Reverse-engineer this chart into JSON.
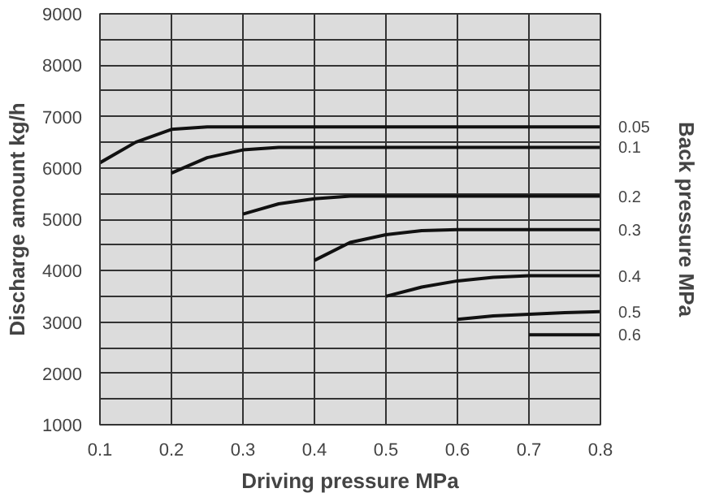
{
  "chart_data": {
    "type": "line",
    "xlabel": "Driving pressure MPa",
    "ylabel": "Discharge amount kg/h",
    "y2label": "Back pressure MPa",
    "xlim": [
      0.1,
      0.8
    ],
    "xticks": [
      0.1,
      0.2,
      0.3,
      0.4,
      0.5,
      0.6,
      0.7,
      0.8
    ],
    "ylim": [
      1000,
      9000
    ],
    "yticks": [
      1000,
      {
        "value": 1500,
        "label": null
      },
      2000,
      {
        "value": 2500,
        "label": null
      },
      3000,
      {
        "value": 3500,
        "label": null
      },
      4000,
      {
        "value": 4500,
        "label": null
      },
      5000,
      {
        "value": 5500,
        "label": null
      },
      6000,
      {
        "value": 6500,
        "label": null
      },
      7000,
      {
        "value": 7500,
        "label": null
      },
      8000,
      {
        "value": 8500,
        "label": null
      },
      9000
    ],
    "grid": true,
    "marker": "none",
    "line_style": "solid",
    "series": [
      {
        "name": "0.05",
        "color": "#111111",
        "x": [
          0.1,
          0.15,
          0.2,
          0.25,
          0.3,
          0.8
        ],
        "values": [
          6100,
          6500,
          6750,
          6800,
          6800,
          6800
        ]
      },
      {
        "name": "0.1",
        "color": "#111111",
        "x": [
          0.2,
          0.25,
          0.3,
          0.35,
          0.8
        ],
        "values": [
          5900,
          6200,
          6350,
          6400,
          6400
        ]
      },
      {
        "name": "0.2",
        "color": "#111111",
        "x": [
          0.3,
          0.35,
          0.4,
          0.45,
          0.5,
          0.8
        ],
        "values": [
          5100,
          5300,
          5400,
          5450,
          5450,
          5450
        ]
      },
      {
        "name": "0.3",
        "color": "#111111",
        "x": [
          0.4,
          0.45,
          0.5,
          0.55,
          0.6,
          0.8
        ],
        "values": [
          4200,
          4550,
          4700,
          4780,
          4800,
          4800
        ]
      },
      {
        "name": "0.4",
        "color": "#111111",
        "x": [
          0.5,
          0.55,
          0.6,
          0.65,
          0.7,
          0.8
        ],
        "values": [
          3500,
          3680,
          3800,
          3870,
          3900,
          3900
        ]
      },
      {
        "name": "0.5",
        "color": "#111111",
        "x": [
          0.6,
          0.65,
          0.7,
          0.75,
          0.8
        ],
        "values": [
          3050,
          3120,
          3150,
          3180,
          3200
        ]
      },
      {
        "name": "0.6",
        "color": "#111111",
        "x": [
          0.7,
          0.8
        ],
        "values": [
          2750,
          2750
        ]
      }
    ]
  }
}
